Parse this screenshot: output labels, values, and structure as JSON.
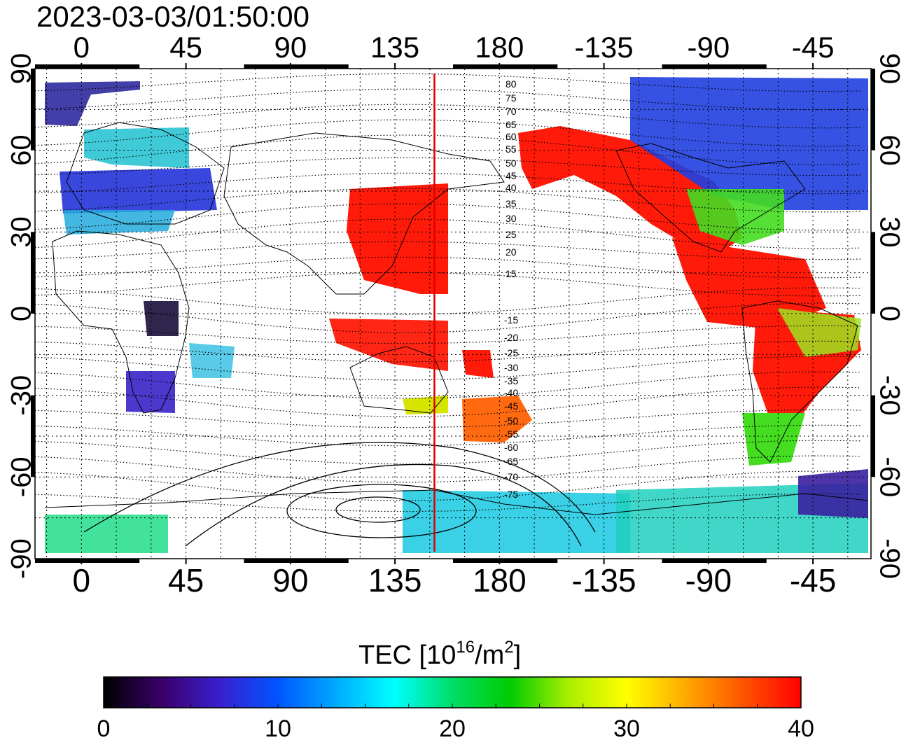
{
  "title": "2023-03-03/01:50:00",
  "top_lon_ticks": [
    "0",
    "45",
    "90",
    "135",
    "180",
    "-135",
    "-90",
    "-45"
  ],
  "bottom_lon_ticks": [
    "0",
    "45",
    "90",
    "135",
    "180",
    "-135",
    "-90",
    "-45"
  ],
  "left_lat_ticks": [
    "90",
    "60",
    "30",
    "0",
    "-30",
    "-60",
    "-90"
  ],
  "right_lat_ticks": [
    "90",
    "60",
    "30",
    "0",
    "-30",
    "-60",
    "-90"
  ],
  "contour_labels_north": [
    "80",
    "75",
    "70",
    "65",
    "60",
    "55",
    "50",
    "45",
    "40",
    "35",
    "30",
    "25",
    "20",
    "15"
  ],
  "contour_labels_south": [
    "-15",
    "-20",
    "-25",
    "-30",
    "-35",
    "-40",
    "-45",
    "-50",
    "-55",
    "-60",
    "-65",
    "-70",
    "-75"
  ],
  "colorbar": {
    "label_main": "TEC  [10",
    "label_sup1": "16",
    "label_mid": "/m",
    "label_sup2": "2",
    "label_end": "]",
    "ticks": [
      "0",
      "10",
      "20",
      "30",
      "40"
    ],
    "range": [
      0,
      40
    ],
    "stops": [
      "#000000",
      "#3a006a",
      "#3a1fd0",
      "#0055ff",
      "#00aaff",
      "#00ffff",
      "#00dd66",
      "#00cc00",
      "#aaee00",
      "#ffff00",
      "#ffaa00",
      "#ff5500",
      "#ff0000"
    ]
  },
  "map": {
    "lon_range": [
      -20,
      340
    ],
    "lat_range": [
      -90,
      90
    ],
    "marker_lon": 152,
    "marker_color": "#dd0000"
  },
  "colors": {
    "frame": "#000000",
    "grid": "#000000"
  }
}
